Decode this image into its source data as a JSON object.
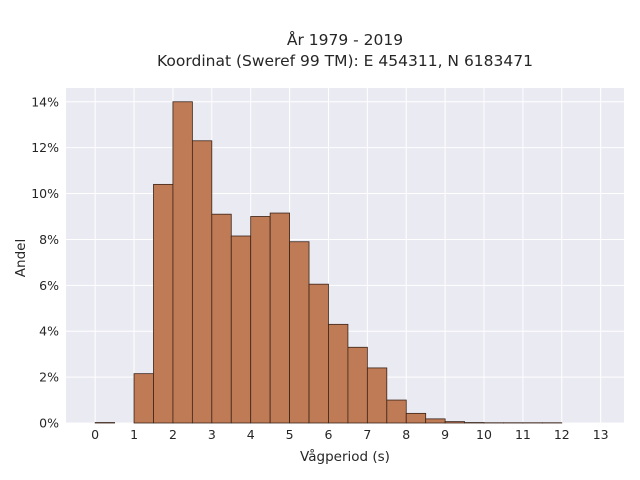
{
  "chart_data": {
    "type": "bar",
    "title_line1": "År 1979 - 2019",
    "title_line2": "Koordinat (Sweref 99 TM): E 454311, N 6183471",
    "xlabel": "Vågperiod (s)",
    "ylabel": "Andel",
    "xlim": [
      -0.75,
      13.6
    ],
    "ylim": [
      0,
      14.6
    ],
    "x_ticks": [
      0,
      1,
      2,
      3,
      4,
      5,
      6,
      7,
      8,
      9,
      10,
      11,
      12,
      13
    ],
    "y_ticks": [
      0,
      2,
      4,
      6,
      8,
      10,
      12,
      14
    ],
    "y_tick_labels": [
      "0%",
      "2%",
      "4%",
      "6%",
      "8%",
      "10%",
      "12%",
      "14%"
    ],
    "bin_width": 0.5,
    "grid": true,
    "bins": [
      {
        "x0": 0.0,
        "value": 0.02
      },
      {
        "x0": 0.5,
        "value": 0.0
      },
      {
        "x0": 1.0,
        "value": 2.15
      },
      {
        "x0": 1.5,
        "value": 10.4
      },
      {
        "x0": 2.0,
        "value": 14.0
      },
      {
        "x0": 2.5,
        "value": 12.3
      },
      {
        "x0": 3.0,
        "value": 9.1
      },
      {
        "x0": 3.5,
        "value": 8.15
      },
      {
        "x0": 4.0,
        "value": 9.0
      },
      {
        "x0": 4.5,
        "value": 9.15
      },
      {
        "x0": 5.0,
        "value": 7.9
      },
      {
        "x0": 5.5,
        "value": 6.05
      },
      {
        "x0": 6.0,
        "value": 4.3
      },
      {
        "x0": 6.5,
        "value": 3.3
      },
      {
        "x0": 7.0,
        "value": 2.4
      },
      {
        "x0": 7.5,
        "value": 1.0
      },
      {
        "x0": 8.0,
        "value": 0.42
      },
      {
        "x0": 8.5,
        "value": 0.18
      },
      {
        "x0": 9.0,
        "value": 0.06
      },
      {
        "x0": 9.5,
        "value": 0.02
      },
      {
        "x0": 10.0,
        "value": 0.01
      },
      {
        "x0": 10.5,
        "value": 0.01
      },
      {
        "x0": 11.0,
        "value": 0.01
      },
      {
        "x0": 11.5,
        "value": 0.01
      }
    ],
    "colors": {
      "bar_fill": "#bf7b56",
      "bar_edge": "#3b2418",
      "plot_background": "#eaeaf2",
      "grid": "#ffffff"
    }
  }
}
